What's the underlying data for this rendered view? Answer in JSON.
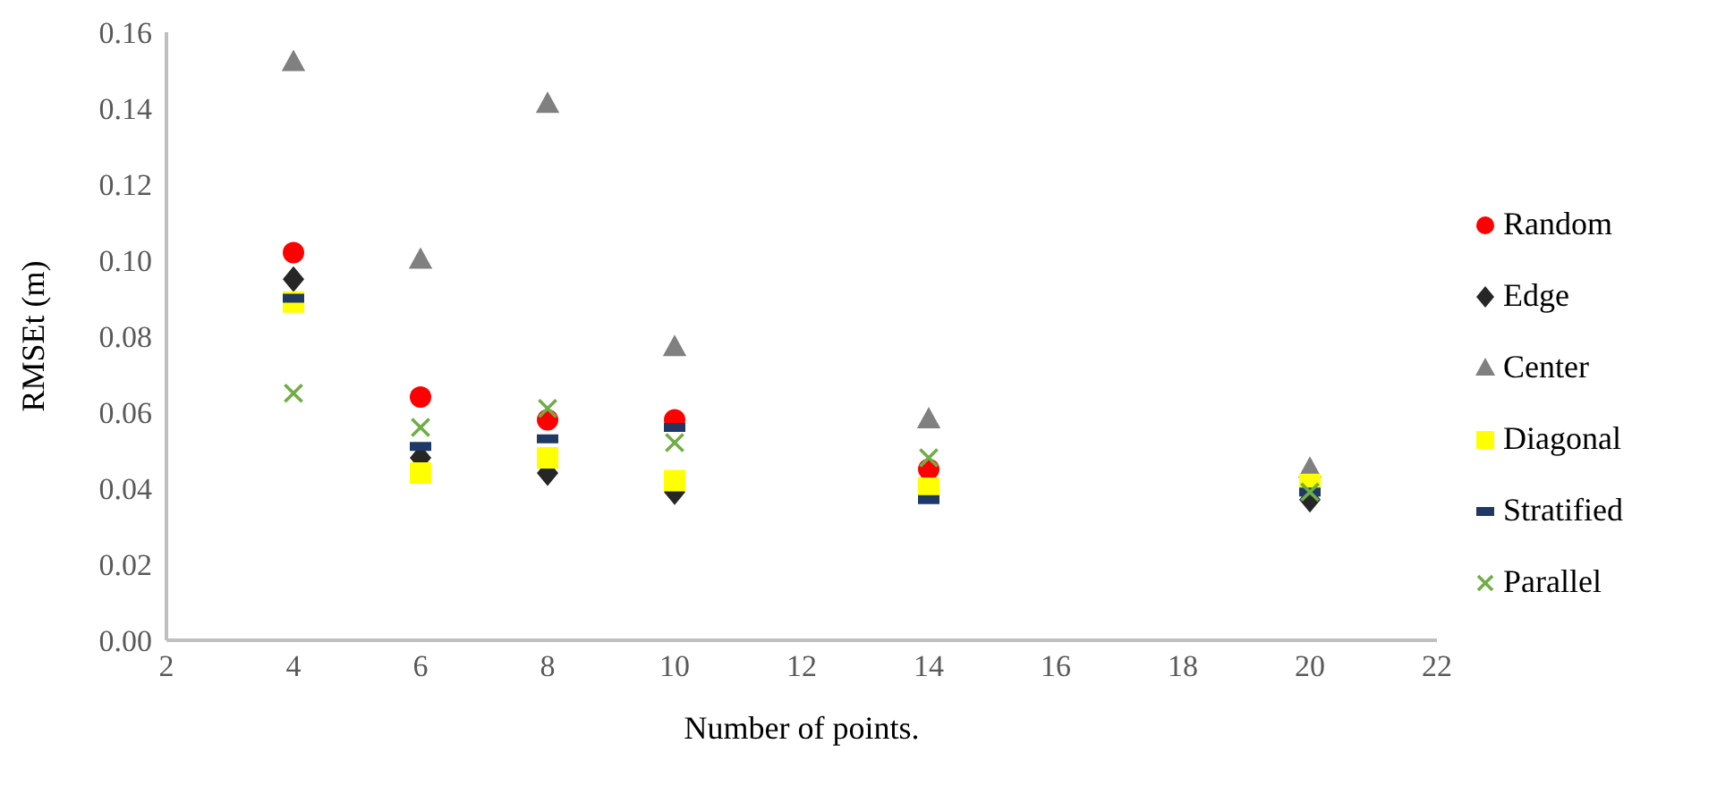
{
  "chart_data": {
    "type": "scatter",
    "xlabel": "Number of points.",
    "ylabel": "RMSEt (m)",
    "x": [
      4,
      6,
      8,
      10,
      14,
      20
    ],
    "xlim": [
      2,
      22
    ],
    "xticks": [
      2,
      4,
      6,
      8,
      10,
      12,
      14,
      16,
      18,
      20,
      22
    ],
    "ylim": [
      0,
      0.16
    ],
    "yticks": [
      {
        "value": 0,
        "label": "0.00"
      },
      {
        "value": 0.02,
        "label": "0.02"
      },
      {
        "value": 0.04,
        "label": "0.04"
      },
      {
        "value": 0.06,
        "label": "0.06"
      },
      {
        "value": 0.08,
        "label": "0.08"
      },
      {
        "value": 0.1,
        "label": "0.10"
      },
      {
        "value": 0.12,
        "label": "0.12"
      },
      {
        "value": 0.14,
        "label": "0.14"
      },
      {
        "value": 0.16,
        "label": "0.16"
      }
    ],
    "grid": false,
    "legend": "right",
    "series": [
      {
        "name": "Random",
        "color": "#ff0000",
        "marker": "circle",
        "values": [
          0.102,
          0.064,
          0.058,
          0.058,
          0.045,
          null
        ]
      },
      {
        "name": "Edge",
        "color": "#262626",
        "marker": "diamond",
        "values": [
          0.095,
          0.048,
          0.044,
          0.039,
          null,
          0.037
        ]
      },
      {
        "name": "Center",
        "color": "#808080",
        "marker": "triangle",
        "values": [
          0.152,
          0.1,
          0.141,
          0.077,
          0.058,
          0.045
        ]
      },
      {
        "name": "Diagonal",
        "color": "#ffff00",
        "marker": "square",
        "values": [
          0.089,
          0.044,
          0.048,
          0.042,
          0.04,
          0.041
        ]
      },
      {
        "name": "Stratified",
        "color": "#1f3864",
        "values": [
          0.09,
          0.051,
          0.053,
          0.056,
          0.037,
          0.039
        ]
      },
      {
        "name": "Parallel",
        "color": "#70ad47",
        "marker": "cross",
        "values": [
          0.065,
          0.056,
          0.061,
          0.052,
          0.048,
          0.039
        ]
      }
    ]
  }
}
